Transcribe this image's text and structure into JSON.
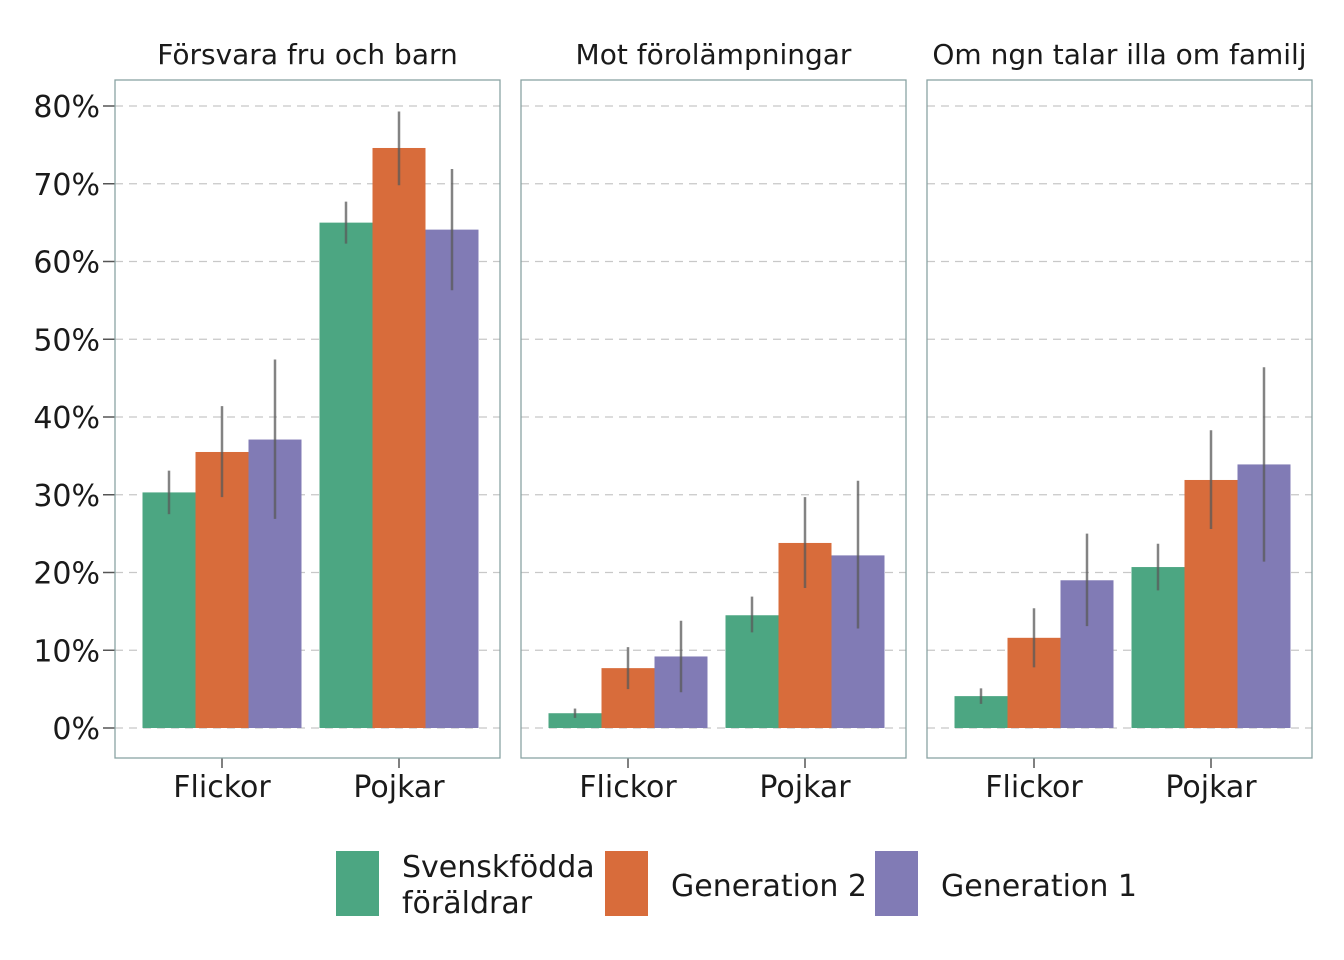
{
  "chart_data": {
    "type": "bar",
    "ylim": [
      0,
      0.8
    ],
    "yticks": [
      0,
      0.1,
      0.2,
      0.3,
      0.4,
      0.5,
      0.6,
      0.7,
      0.8
    ],
    "ytick_labels": [
      "0%",
      "10%",
      "20%",
      "30%",
      "40%",
      "50%",
      "60%",
      "70%",
      "80%"
    ],
    "grid": "horizontal dashed",
    "legend_position": "bottom",
    "categories": [
      "Flickor",
      "Pojkar"
    ],
    "series": [
      {
        "key": "svenskfodda",
        "name": "Svenskfödda föräldrar",
        "name_lines": [
          "Svenskfödda",
          "föräldrar"
        ],
        "color": "#4ca682"
      },
      {
        "key": "gen2",
        "name": "Generation 2",
        "name_lines": [
          "Generation 2"
        ],
        "color": "#d86c3b"
      },
      {
        "key": "gen1",
        "name": "Generation 1",
        "name_lines": [
          "Generation 1"
        ],
        "color": "#817bb5"
      }
    ],
    "panels": [
      {
        "title": "Försvara fru och barn",
        "values": [
          [
            0.303,
            0.355,
            0.371
          ],
          [
            0.65,
            0.746,
            0.641
          ]
        ],
        "error_low": [
          [
            0.275,
            0.297,
            0.269
          ],
          [
            0.623,
            0.698,
            0.563
          ]
        ],
        "error_high": [
          [
            0.331,
            0.414,
            0.474
          ],
          [
            0.677,
            0.793,
            0.719
          ]
        ]
      },
      {
        "title": "Mot förolämpningar",
        "values": [
          [
            0.019,
            0.077,
            0.092
          ],
          [
            0.145,
            0.238,
            0.222
          ]
        ],
        "error_low": [
          [
            0.013,
            0.05,
            0.046
          ],
          [
            0.123,
            0.18,
            0.128
          ]
        ],
        "error_high": [
          [
            0.025,
            0.104,
            0.138
          ],
          [
            0.169,
            0.297,
            0.318
          ]
        ]
      },
      {
        "title": "Om ngn talar illa om familj",
        "values": [
          [
            0.041,
            0.116,
            0.19
          ],
          [
            0.207,
            0.319,
            0.339
          ]
        ],
        "error_low": [
          [
            0.031,
            0.078,
            0.131
          ],
          [
            0.177,
            0.256,
            0.214
          ]
        ],
        "error_high": [
          [
            0.051,
            0.154,
            0.25
          ],
          [
            0.237,
            0.383,
            0.464
          ]
        ]
      }
    ]
  }
}
